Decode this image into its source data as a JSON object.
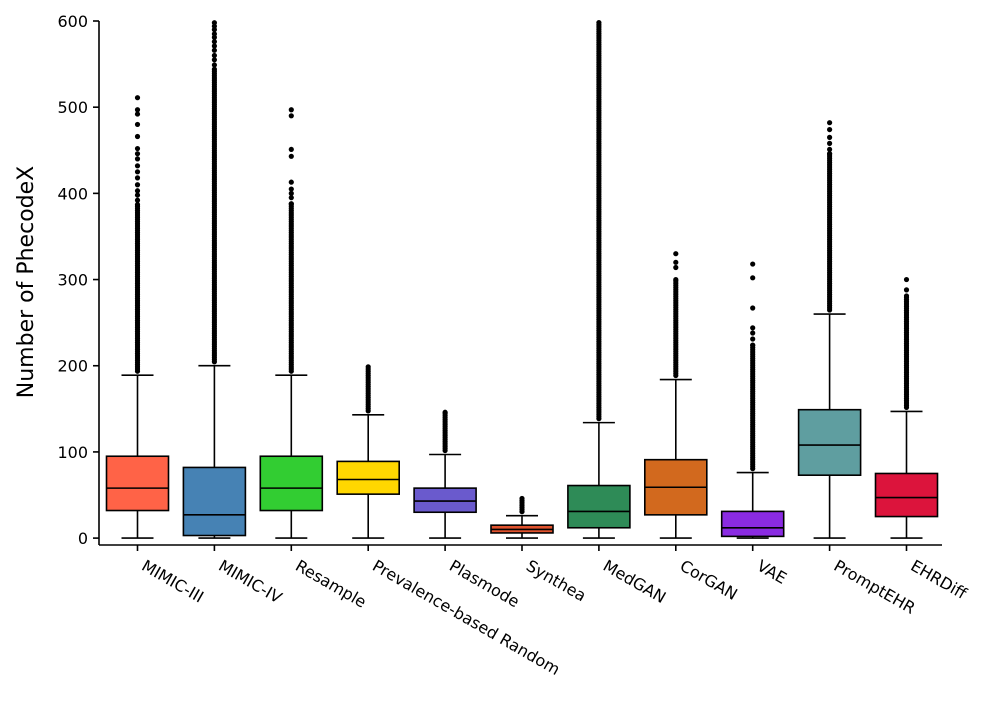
{
  "chart_data": {
    "type": "box",
    "title": "",
    "xlabel": "",
    "ylabel": "Number of PhecodeX",
    "ylim": [
      -8,
      600
    ],
    "yticks": [
      0,
      100,
      200,
      300,
      400,
      500,
      600
    ],
    "grid": false,
    "categories": [
      "MIMIC-III",
      "MIMIC-IV",
      "Resample",
      "Prevalence-based Random",
      "Plasmode",
      "Synthea",
      "MedGAN",
      "CorGAN",
      "VAE",
      "PromptEHR",
      "EHRDiff"
    ],
    "boxes": [
      {
        "name": "MIMIC-III",
        "color": "#FF6347",
        "min": 0,
        "q1": 32,
        "median": 58,
        "q3": 95,
        "whisker_high": 189,
        "outlier_max": 511,
        "sparse_outliers": [
          511,
          497,
          492,
          480,
          466,
          452,
          446,
          440,
          432,
          425,
          418,
          410,
          403,
          398,
          392,
          387
        ]
      },
      {
        "name": "MIMIC-IV",
        "color": "#4682B4",
        "min": 0,
        "q1": 3,
        "median": 27,
        "q3": 82,
        "whisker_high": 200,
        "outlier_max": 600,
        "sparse_outliers": [
          598,
          594,
          590,
          585,
          581,
          576,
          571,
          566,
          560,
          555,
          549,
          544
        ]
      },
      {
        "name": "Resample",
        "color": "#32CD32",
        "min": 0,
        "q1": 32,
        "median": 58,
        "q3": 95,
        "whisker_high": 189,
        "outlier_max": 497,
        "sparse_outliers": [
          497,
          490,
          451,
          443,
          413,
          405,
          400,
          395,
          388
        ]
      },
      {
        "name": "Prevalence-based Random",
        "color": "#FFD700",
        "min": 0,
        "q1": 51,
        "median": 68,
        "q3": 89,
        "whisker_high": 143,
        "outlier_max": 200,
        "sparse_outliers": []
      },
      {
        "name": "Plasmode",
        "color": "#6A5ACD",
        "min": 0,
        "q1": 30,
        "median": 43,
        "q3": 58,
        "whisker_high": 97,
        "outlier_max": 146,
        "sparse_outliers": [
          146
        ]
      },
      {
        "name": "Synthea",
        "color": "#E0522D",
        "min": 0,
        "q1": 6,
        "median": 10,
        "q3": 15,
        "whisker_high": 26,
        "outlier_max": 47,
        "sparse_outliers": []
      },
      {
        "name": "MedGAN",
        "color": "#2E8B57",
        "min": 0,
        "q1": 12,
        "median": 31,
        "q3": 61,
        "whisker_high": 134,
        "outlier_max": 600,
        "sparse_outliers": []
      },
      {
        "name": "CorGAN",
        "color": "#D2691E",
        "min": 0,
        "q1": 27,
        "median": 59,
        "q3": 91,
        "whisker_high": 184,
        "outlier_max": 330,
        "sparse_outliers": [
          330,
          320,
          314,
          300
        ]
      },
      {
        "name": "VAE",
        "color": "#8A2BE2",
        "min": 0,
        "q1": 2,
        "median": 12,
        "q3": 31,
        "whisker_high": 76,
        "outlier_max": 318,
        "sparse_outliers": [
          318,
          302,
          267,
          244,
          238,
          231,
          224
        ]
      },
      {
        "name": "PromptEHR",
        "color": "#5F9EA0",
        "min": 0,
        "q1": 73,
        "median": 108,
        "q3": 149,
        "whisker_high": 260,
        "outlier_max": 482,
        "sparse_outliers": [
          482,
          474,
          465,
          458,
          451,
          446
        ]
      },
      {
        "name": "EHRDiff",
        "color": "#DC143C",
        "min": 0,
        "q1": 25,
        "median": 47,
        "q3": 75,
        "whisker_high": 147,
        "outlier_max": 300,
        "sparse_outliers": [
          300,
          288,
          281
        ]
      }
    ]
  }
}
